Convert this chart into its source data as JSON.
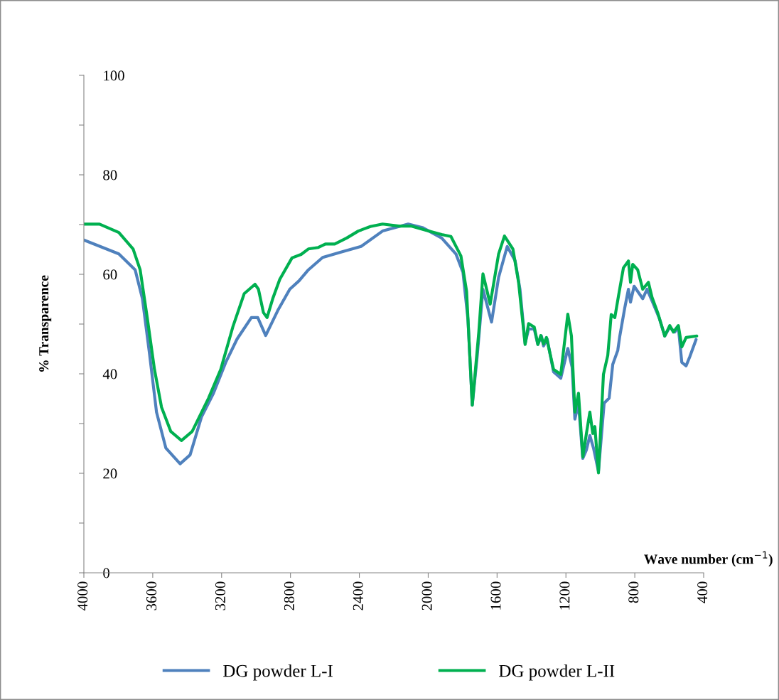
{
  "chart_data": {
    "type": "line",
    "xlabel": "Wave number (cm$^{−1}$)",
    "ylabel": "% Transparence",
    "xlim": [
      4000,
      400
    ],
    "xticks": [
      4000,
      3600,
      3200,
      2800,
      2400,
      2000,
      1600,
      1200,
      800,
      400
    ],
    "ylim": [
      0,
      100
    ],
    "yticks": [
      0,
      {
        "value": 10,
        "label": null
      },
      20,
      {
        "value": 30,
        "label": null
      },
      40,
      {
        "value": 50,
        "label": null
      },
      60,
      {
        "value": 70,
        "label": null
      },
      80,
      {
        "value": 90,
        "label": null
      },
      100
    ],
    "grid": false,
    "legend": "bottom",
    "marker": "none",
    "line_style": "solid",
    "series": [
      {
        "name": "DG powder L-I",
        "color": "#4f81bd",
        "x": [
          4000,
          3797,
          3702,
          3660,
          3619,
          3578,
          3524,
          3441,
          3383,
          3317,
          3247,
          3176,
          3110,
          3027,
          2990,
          2944,
          2874,
          2804,
          2750,
          2696,
          2613,
          2514,
          2390,
          2265,
          2116,
          2034,
          1922,
          1839,
          1798,
          1769,
          1744,
          1715,
          1682,
          1632,
          1591,
          1541,
          1495,
          1467,
          1437,
          1417,
          1384,
          1363,
          1342,
          1330,
          1309,
          1272,
          1230,
          1189,
          1164,
          1148,
          1127,
          1102,
          1081,
          1061,
          1040,
          1011,
          978,
          949,
          928,
          899,
          887,
          858,
          837,
          825,
          804,
          754,
          729,
          700,
          659,
          626,
          597,
          568,
          547,
          527,
          502,
          481,
          444
        ],
        "values": [
          66.9,
          64.1,
          60.9,
          55.1,
          44.1,
          32.3,
          25.1,
          21.9,
          23.7,
          31.3,
          36.1,
          42.3,
          47.0,
          51.3,
          51.3,
          47.7,
          52.7,
          57.0,
          58.7,
          60.9,
          63.4,
          64.4,
          65.6,
          68.7,
          70.1,
          69.4,
          67.3,
          64.1,
          60.4,
          50.9,
          33.7,
          43.7,
          57.0,
          50.4,
          59.4,
          65.6,
          62.7,
          57.0,
          46.1,
          49.0,
          49.0,
          45.9,
          47.6,
          45.6,
          47.0,
          40.4,
          39.1,
          45.1,
          41.3,
          30.9,
          34.1,
          23.0,
          24.7,
          27.6,
          25.1,
          20.4,
          34.1,
          35.1,
          41.9,
          44.7,
          47.6,
          53.3,
          57.0,
          54.4,
          57.6,
          55.1,
          57.0,
          54.7,
          51.3,
          47.6,
          49.4,
          48.4,
          49.4,
          42.3,
          41.6,
          43.4,
          46.9
        ]
      },
      {
        "name": "DG powder L-II",
        "color": "#00b050",
        "x": [
          4000,
          3909,
          3797,
          3714,
          3673,
          3632,
          3590,
          3549,
          3495,
          3433,
          3371,
          3276,
          3205,
          3135,
          3069,
          3006,
          2986,
          2957,
          2936,
          2903,
          2862,
          2791,
          2738,
          2696,
          2638,
          2597,
          2543,
          2473,
          2406,
          2336,
          2265,
          2170,
          2100,
          2017,
          1922,
          1868,
          1810,
          1777,
          1744,
          1706,
          1682,
          1640,
          1591,
          1557,
          1508,
          1475,
          1437,
          1417,
          1384,
          1363,
          1346,
          1330,
          1313,
          1272,
          1230,
          1189,
          1168,
          1148,
          1127,
          1102,
          1081,
          1061,
          1044,
          1032,
          1011,
          982,
          957,
          937,
          916,
          895,
          866,
          837,
          825,
          812,
          783,
          754,
          721,
          700,
          667,
          626,
          597,
          576,
          547,
          527,
          502,
          440
        ],
        "values": [
          70.1,
          70.1,
          68.4,
          65.1,
          60.9,
          51.3,
          40.9,
          33.3,
          28.4,
          26.6,
          28.4,
          35.1,
          40.9,
          49.4,
          56.1,
          58.0,
          57.0,
          52.3,
          51.3,
          55.1,
          59.0,
          63.3,
          64.0,
          65.1,
          65.4,
          66.1,
          66.1,
          67.3,
          68.7,
          69.6,
          70.1,
          69.7,
          69.7,
          68.9,
          68.0,
          67.6,
          63.7,
          56.6,
          33.7,
          48.4,
          60.1,
          54.0,
          64.1,
          67.7,
          65.1,
          58.4,
          45.9,
          50.1,
          49.4,
          45.9,
          47.7,
          46.0,
          47.3,
          40.9,
          39.9,
          52.0,
          47.6,
          32.3,
          36.1,
          23.3,
          28.0,
          32.3,
          28.0,
          29.4,
          20.1,
          39.9,
          43.7,
          51.9,
          51.3,
          55.6,
          61.3,
          62.7,
          58.4,
          62.0,
          60.9,
          57.0,
          58.4,
          55.4,
          52.3,
          47.6,
          49.7,
          48.4,
          49.7,
          45.4,
          47.3,
          47.6
        ]
      }
    ]
  }
}
